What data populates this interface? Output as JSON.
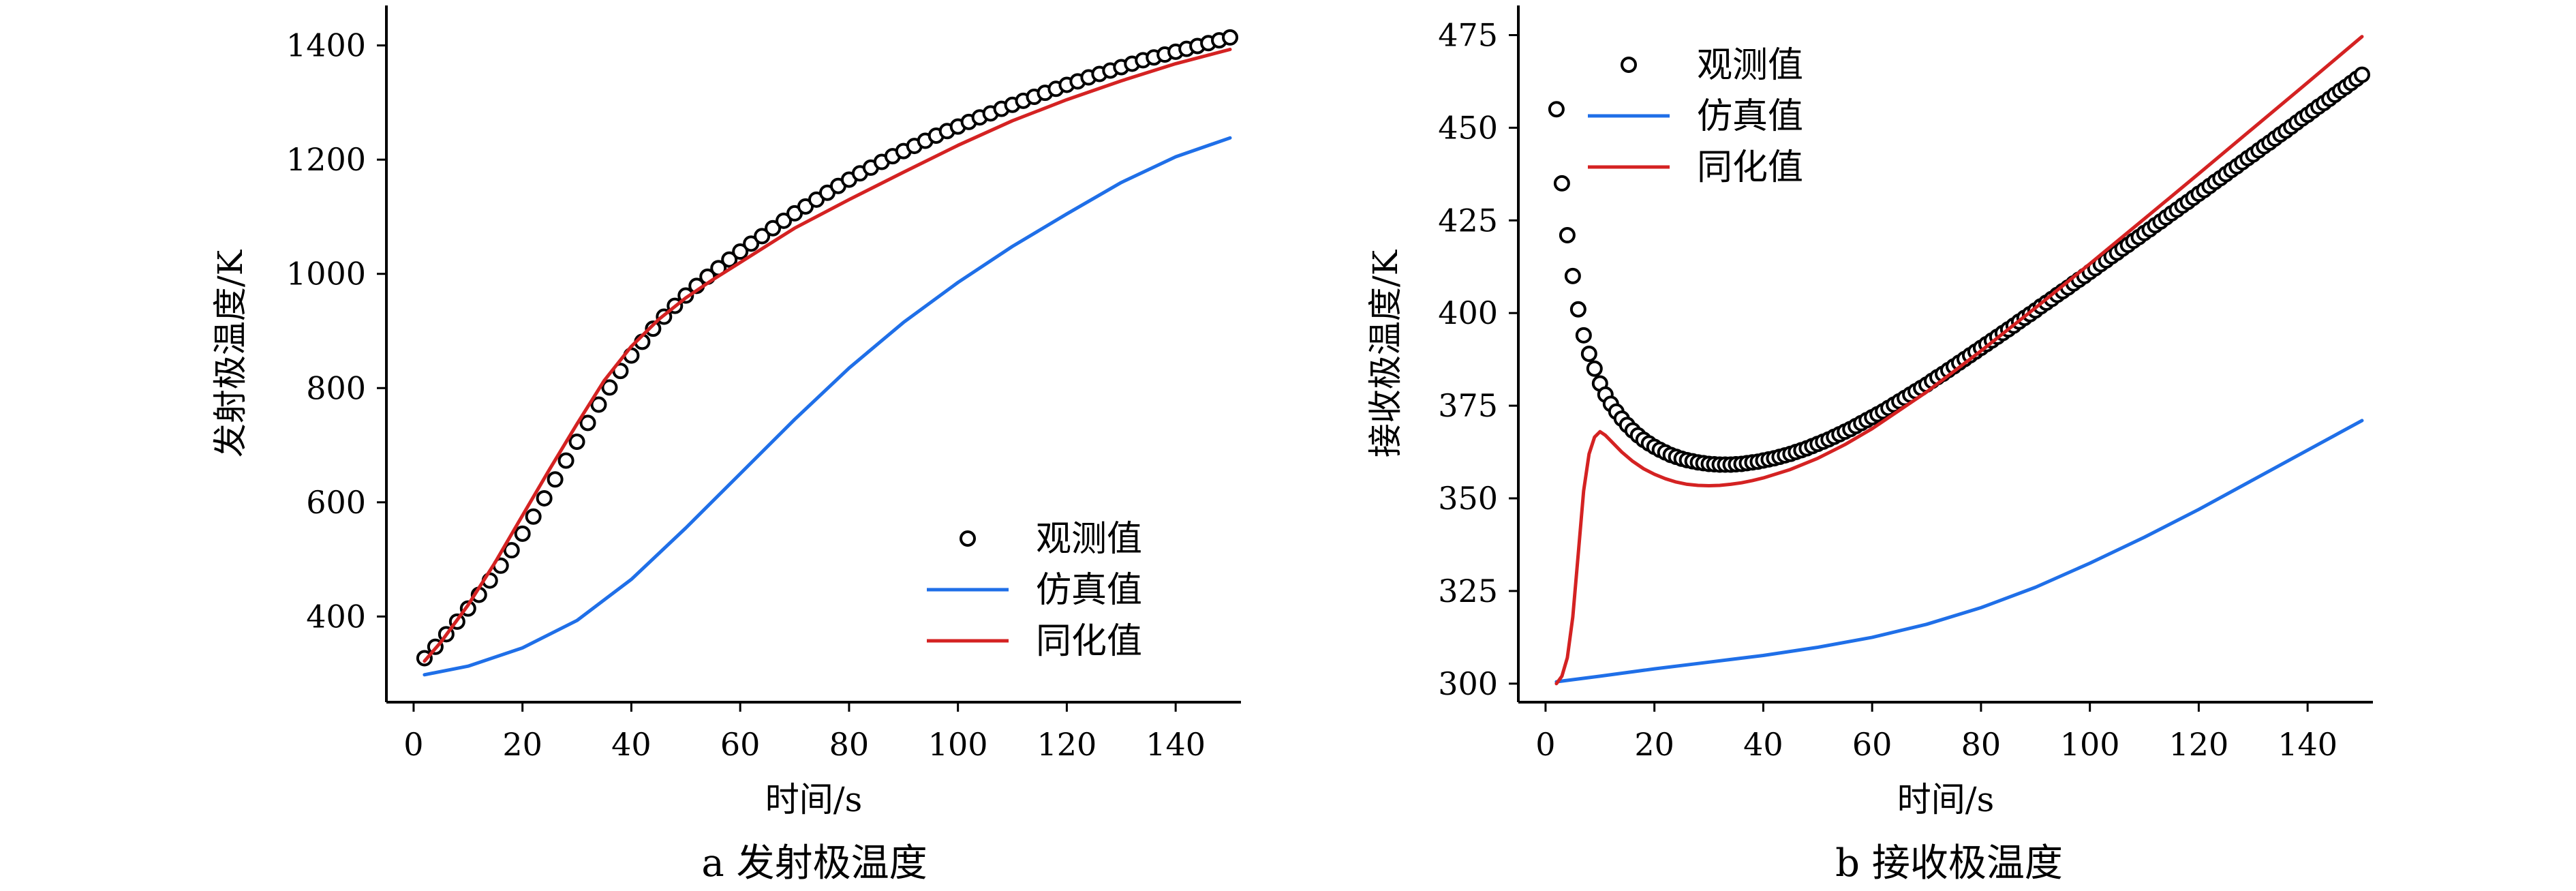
{
  "chart_data": [
    {
      "id": "a",
      "type": "line",
      "caption": "a  发射极温度",
      "xlabel": "时间/s",
      "ylabel": "发射极温度/K",
      "xlim": [
        -5,
        152
      ],
      "ylim": [
        250,
        1470
      ],
      "xticks": [
        0,
        20,
        40,
        60,
        80,
        100,
        120,
        140
      ],
      "yticks": [
        400,
        600,
        800,
        1000,
        1200,
        1400
      ],
      "legend_position": "lower-right",
      "series": [
        {
          "name": "观测值",
          "style": "markers",
          "color": "#000000",
          "x": [
            2,
            4,
            6,
            8,
            10,
            12,
            14,
            16,
            18,
            20,
            22,
            24,
            26,
            28,
            30,
            32,
            34,
            36,
            38,
            40,
            42,
            44,
            46,
            48,
            50,
            52,
            54,
            56,
            58,
            60,
            62,
            64,
            66,
            68,
            70,
            72,
            74,
            76,
            78,
            80,
            82,
            84,
            86,
            88,
            90,
            92,
            94,
            96,
            98,
            100,
            102,
            104,
            106,
            108,
            110,
            112,
            114,
            116,
            118,
            120,
            122,
            124,
            126,
            128,
            130,
            132,
            134,
            136,
            138,
            140,
            142,
            144,
            146,
            148,
            150
          ],
          "y": [
            327,
            347,
            369,
            391,
            414,
            438,
            463,
            489,
            516,
            545,
            575,
            607,
            640,
            673,
            706,
            739,
            771,
            801,
            830,
            857,
            881,
            904,
            925,
            944,
            962,
            979,
            995,
            1010,
            1025,
            1039,
            1053,
            1066,
            1080,
            1093,
            1106,
            1118,
            1130,
            1142,
            1154,
            1165,
            1176,
            1186,
            1196,
            1206,
            1215,
            1224,
            1233,
            1242,
            1250,
            1258,
            1266,
            1274,
            1281,
            1289,
            1296,
            1303,
            1310,
            1317,
            1324,
            1331,
            1337,
            1344,
            1350,
            1356,
            1362,
            1368,
            1374,
            1379,
            1384,
            1389,
            1394,
            1399,
            1404,
            1409,
            1414
          ]
        },
        {
          "name": "仿真值",
          "style": "line",
          "color": "#1f6fe8",
          "x": [
            2,
            10,
            20,
            30,
            40,
            50,
            60,
            70,
            80,
            90,
            100,
            110,
            120,
            130,
            140,
            150
          ],
          "y": [
            298,
            313,
            345,
            393,
            465,
            555,
            650,
            745,
            835,
            915,
            985,
            1048,
            1105,
            1160,
            1205,
            1238
          ]
        },
        {
          "name": "同化值",
          "style": "line",
          "color": "#d42222",
          "x": [
            2,
            5,
            10,
            15,
            20,
            25,
            30,
            35,
            40,
            45,
            50,
            55,
            60,
            70,
            80,
            90,
            100,
            110,
            120,
            130,
            140,
            150
          ],
          "y": [
            322,
            355,
            420,
            495,
            577,
            658,
            737,
            813,
            873,
            920,
            958,
            990,
            1020,
            1080,
            1130,
            1178,
            1225,
            1268,
            1305,
            1338,
            1368,
            1393
          ]
        }
      ]
    },
    {
      "id": "b",
      "type": "line",
      "caption": "b  接收极温度",
      "xlabel": "时间/s",
      "ylabel": "接收极温度/K",
      "xlim": [
        -5,
        152
      ],
      "ylim": [
        295,
        483
      ],
      "xticks": [
        0,
        20,
        40,
        60,
        80,
        100,
        120,
        140
      ],
      "yticks": [
        300,
        325,
        350,
        375,
        400,
        425,
        450,
        475
      ],
      "legend_position": "top-left",
      "series": [
        {
          "name": "观测值",
          "style": "markers",
          "color": "#000000",
          "x": [
            2,
            3,
            4,
            5,
            6,
            7,
            8,
            9,
            10,
            11,
            12,
            13,
            14,
            15,
            16,
            17,
            18,
            19,
            20,
            21,
            22,
            23,
            24,
            25,
            26,
            27,
            28,
            29,
            30,
            31,
            32,
            33,
            34,
            35,
            36,
            37,
            38,
            39,
            40,
            41,
            42,
            43,
            44,
            45,
            46,
            47,
            48,
            49,
            50,
            51,
            52,
            53,
            54,
            55,
            56,
            57,
            58,
            59,
            60,
            61,
            62,
            63,
            64,
            65,
            66,
            67,
            68,
            69,
            70,
            71,
            72,
            73,
            74,
            75,
            76,
            77,
            78,
            79,
            80,
            81,
            82,
            83,
            84,
            85,
            86,
            87,
            88,
            89,
            90,
            91,
            92,
            93,
            94,
            95,
            96,
            97,
            98,
            99,
            100,
            101,
            102,
            103,
            104,
            105,
            106,
            107,
            108,
            109,
            110,
            111,
            112,
            113,
            114,
            115,
            116,
            117,
            118,
            119,
            120,
            121,
            122,
            123,
            124,
            125,
            126,
            127,
            128,
            129,
            130,
            131,
            132,
            133,
            134,
            135,
            136,
            137,
            138,
            139,
            140,
            141,
            142,
            143,
            144,
            145,
            146,
            147,
            148,
            149,
            150
          ],
          "y": [
            455,
            435,
            421,
            410,
            401,
            394,
            389,
            385,
            381,
            378,
            375.5,
            373.4,
            371.5,
            369.8,
            368.3,
            367,
            365.8,
            364.8,
            363.9,
            363.1,
            362.4,
            361.7,
            361.2,
            360.7,
            360.3,
            360,
            359.7,
            359.5,
            359.3,
            359.2,
            359.1,
            359.1,
            359.1,
            359.2,
            359.3,
            359.5,
            359.7,
            359.9,
            360.2,
            360.5,
            360.8,
            361.2,
            361.6,
            362,
            362.5,
            363,
            363.5,
            364.1,
            364.7,
            365.3,
            365.9,
            366.6,
            367.3,
            368,
            368.7,
            369.5,
            370.3,
            371.1,
            371.9,
            372.7,
            373.5,
            374.4,
            375.3,
            376.2,
            377.1,
            378,
            378.9,
            379.8,
            380.7,
            381.7,
            382.7,
            383.6,
            384.6,
            385.6,
            386.6,
            387.6,
            388.6,
            389.6,
            390.6,
            391.6,
            392.6,
            393.6,
            394.6,
            395.6,
            396.6,
            397.7,
            398.7,
            399.7,
            400.7,
            401.8,
            402.8,
            403.8,
            404.9,
            405.9,
            406.9,
            408,
            409,
            410,
            411.1,
            412.1,
            413.2,
            414.2,
            415.3,
            416.3,
            417.4,
            418.4,
            419.5,
            420.5,
            421.6,
            422.6,
            423.7,
            424.7,
            425.8,
            426.9,
            427.9,
            429,
            430,
            431.1,
            432.2,
            433.2,
            434.3,
            435.4,
            436.4,
            437.5,
            438.6,
            439.6,
            440.7,
            441.8,
            442.8,
            443.9,
            445,
            446,
            447.1,
            448.2,
            449.2,
            450.3,
            451.4,
            452.5,
            453.5,
            454.6,
            455.7,
            456.7,
            457.8,
            458.9,
            460,
            461,
            462.1,
            463.2,
            464.3
          ],
          "note_y_offset_dummy": null
        },
        {
          "name": "仿真值",
          "style": "line",
          "color": "#1f6fe8",
          "x": [
            2,
            10,
            20,
            30,
            40,
            50,
            60,
            70,
            80,
            90,
            100,
            110,
            120,
            130,
            140,
            150
          ],
          "y": [
            300.5,
            302,
            304,
            305.8,
            307.6,
            309.8,
            312.5,
            316,
            320.5,
            326,
            332.5,
            339.5,
            347,
            355,
            363,
            371
          ]
        },
        {
          "name": "同化值",
          "style": "line",
          "color": "#d42222",
          "x": [
            2,
            3,
            4,
            5,
            6,
            7,
            8,
            9,
            10,
            11,
            12,
            14,
            16,
            18,
            20,
            22,
            24,
            26,
            28,
            30,
            32,
            34,
            36,
            38,
            40,
            45,
            50,
            55,
            60,
            70,
            80,
            90,
            100,
            110,
            120,
            130,
            140,
            150
          ],
          "y": [
            300,
            302,
            307,
            318,
            335,
            352,
            362,
            366.5,
            368,
            367,
            365.5,
            362.5,
            360,
            358,
            356.5,
            355.3,
            354.4,
            353.8,
            353.5,
            353.4,
            353.5,
            353.8,
            354.2,
            354.8,
            355.5,
            357.8,
            360.8,
            364.5,
            368.8,
            378.7,
            389.8,
            401.4,
            413.3,
            425.4,
            437.6,
            449.9,
            462.2,
            474.6
          ]
        }
      ]
    }
  ]
}
